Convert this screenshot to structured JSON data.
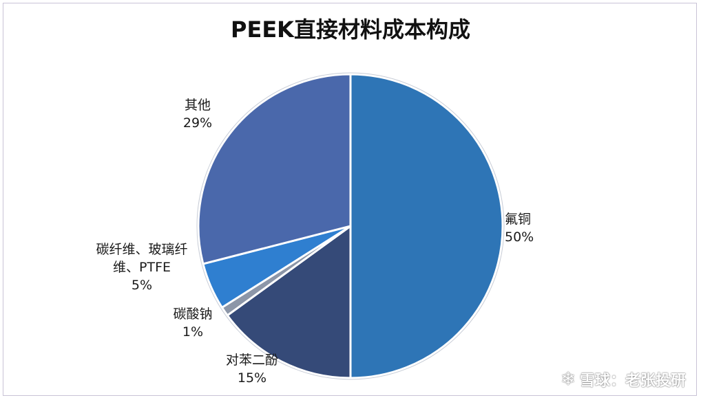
{
  "chart_data": {
    "type": "pie",
    "title": "PEEK直接材料成本构成",
    "slices": [
      {
        "label": "氟铜",
        "label_lines": [
          "氟铜"
        ],
        "value": 50,
        "value_text": "50%",
        "color": "#2e75b6"
      },
      {
        "label": "对苯二酚",
        "label_lines": [
          "对苯二酚"
        ],
        "value": 15,
        "value_text": "15%",
        "color": "#354a78"
      },
      {
        "label": "碳酸钠",
        "label_lines": [
          "碳酸钠"
        ],
        "value": 1,
        "value_text": "1%",
        "color": "#8c96a8"
      },
      {
        "label": "碳纤维、玻璃纤维、PTFE",
        "label_lines": [
          "碳纤维、玻璃纤",
          "维、PTFE"
        ],
        "value": 5,
        "value_text": "5%",
        "color": "#2f7fd0"
      },
      {
        "label": "其他",
        "label_lines": [
          "其他"
        ],
        "value": 29,
        "value_text": "29%",
        "color": "#4a68ab"
      }
    ],
    "start_angle_deg": 0,
    "direction": "clockwise",
    "legend": "none"
  },
  "watermark": {
    "icon": "snowball-logo-icon",
    "text": "雪球：老张投研"
  }
}
